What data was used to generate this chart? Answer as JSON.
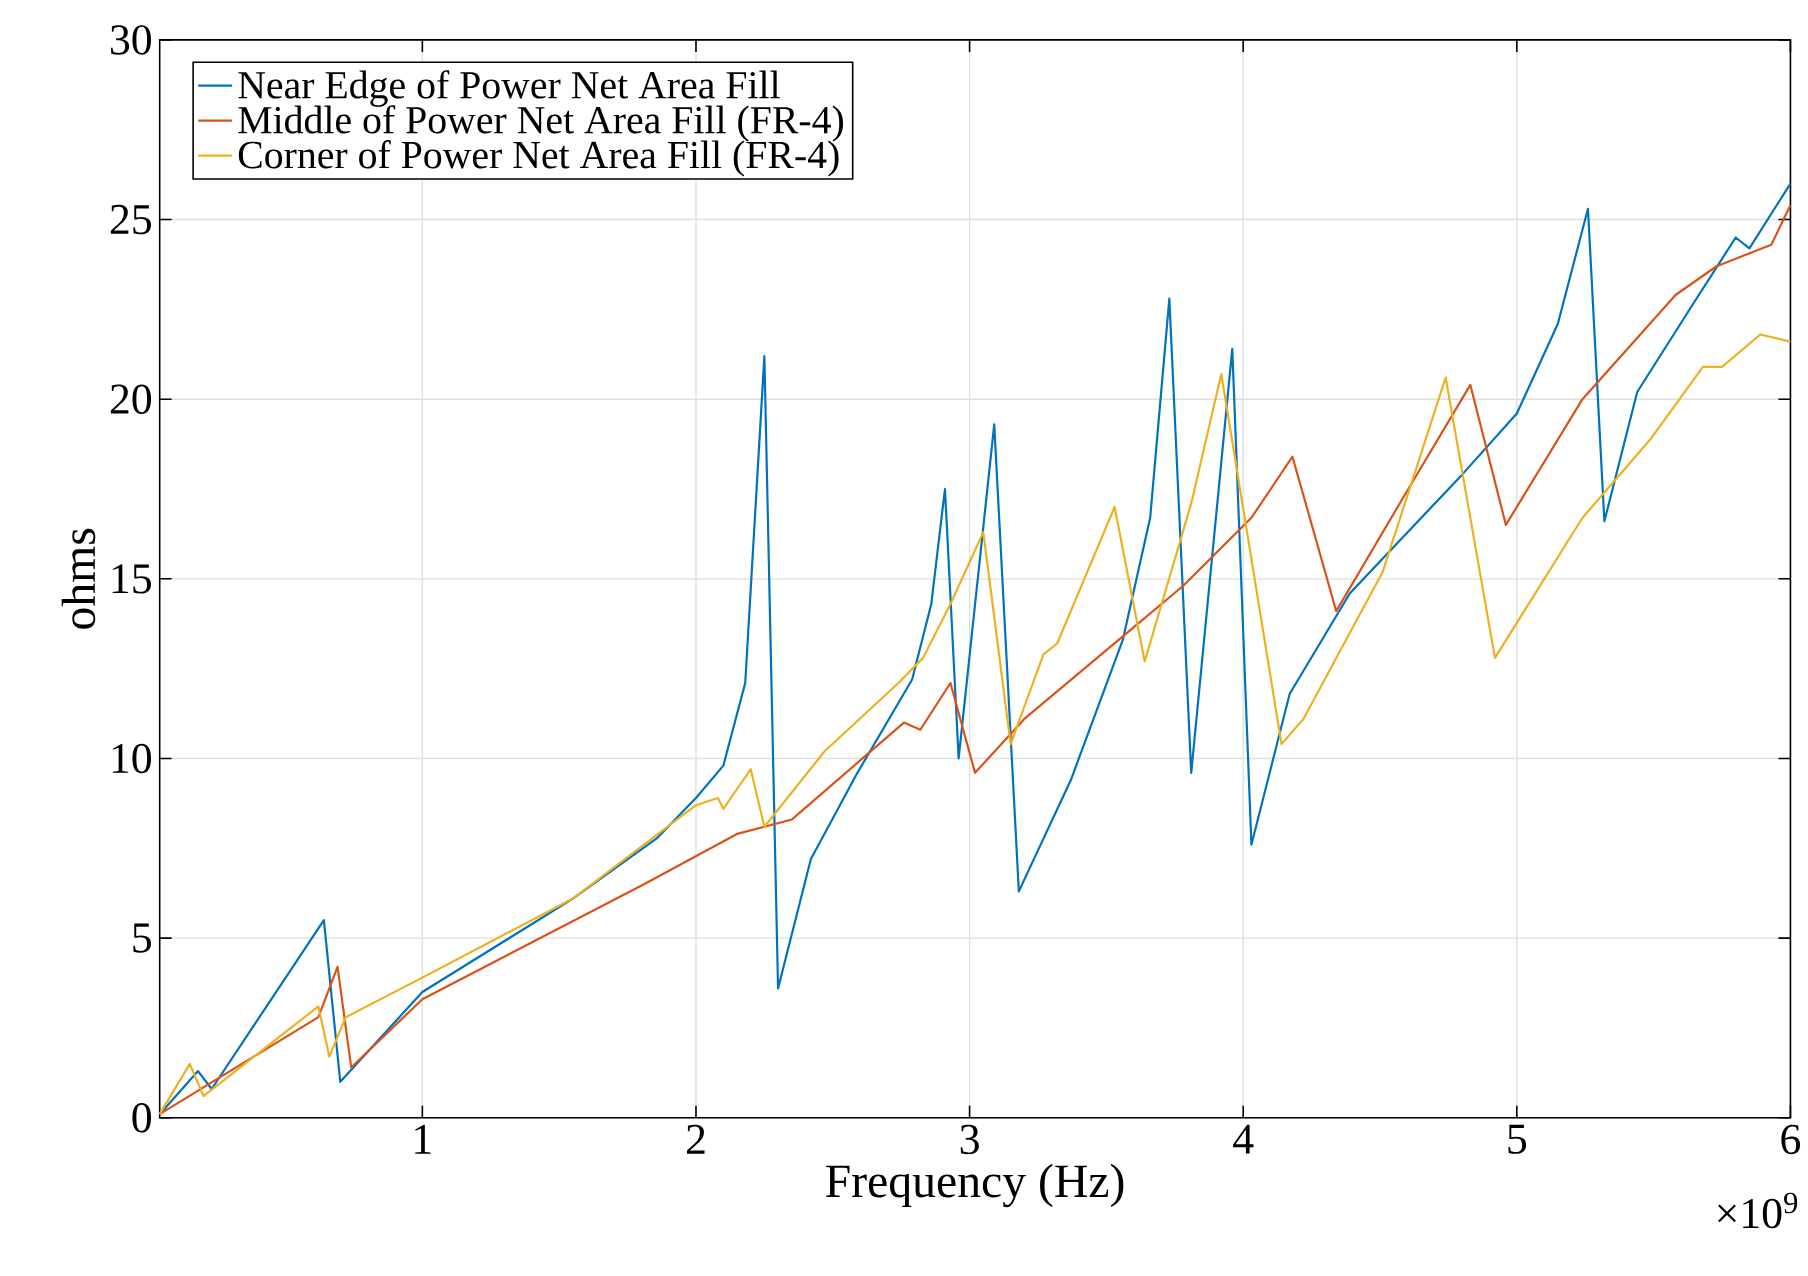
{
  "chart_data": {
    "type": "line",
    "xlabel": "Frequency (Hz)",
    "ylabel": "ohms",
    "annotations": [
      "×10$^{9}$"
    ],
    "xlim": [
      0.04,
      6
    ],
    "ylim": [
      0,
      30
    ],
    "xticks": [
      1,
      2,
      3,
      4,
      5,
      6
    ],
    "yticks": [
      0,
      5,
      10,
      15,
      20,
      25,
      30
    ],
    "grid": true,
    "legend": "top left",
    "marker": "none",
    "line_style": "solid",
    "series": [
      {
        "name": "Near Edge of Power Net Area Fill",
        "color": "#0072bd",
        "x": [
          0.04,
          0.18,
          0.23,
          0.64,
          0.7,
          1.0,
          1.55,
          1.86,
          2.0,
          2.1,
          2.18,
          2.25,
          2.3,
          2.42,
          2.59,
          2.79,
          2.86,
          2.91,
          2.96,
          3.09,
          3.18,
          3.37,
          3.56,
          3.66,
          3.73,
          3.81,
          3.96,
          4.03,
          4.17,
          4.39,
          4.8,
          5.0,
          5.15,
          5.26,
          5.32,
          5.44,
          5.64,
          5.8,
          5.85,
          6.0
        ],
        "values": [
          0.1,
          1.3,
          0.8,
          5.5,
          1.0,
          3.5,
          6.1,
          7.8,
          8.9,
          9.8,
          12.1,
          21.2,
          3.6,
          7.2,
          9.6,
          12.2,
          14.3,
          17.5,
          10.0,
          19.3,
          6.3,
          9.4,
          13.3,
          16.7,
          22.8,
          9.6,
          21.4,
          7.6,
          11.8,
          14.6,
          17.9,
          19.6,
          22.1,
          25.3,
          16.6,
          20.2,
          22.6,
          24.5,
          24.2,
          26.0
        ]
      },
      {
        "name": "Middle of Power Net Area Fill (FR-4)",
        "color": "#d95319",
        "x": [
          0.04,
          0.62,
          0.69,
          0.74,
          1.0,
          1.81,
          2.15,
          2.35,
          2.76,
          2.82,
          2.93,
          3.02,
          3.2,
          3.56,
          3.78,
          4.03,
          4.18,
          4.34,
          4.58,
          4.83,
          4.96,
          5.24,
          5.58,
          5.73,
          5.93,
          6.0
        ],
        "values": [
          0.1,
          2.8,
          4.2,
          1.4,
          3.3,
          6.5,
          7.9,
          8.3,
          11.0,
          10.8,
          12.1,
          9.6,
          11.1,
          13.4,
          14.8,
          16.7,
          18.4,
          14.1,
          17.2,
          20.4,
          16.5,
          20.0,
          22.9,
          23.7,
          24.3,
          25.4
        ]
      },
      {
        "name": "Corner of Power Net Area Fill (FR-4)",
        "color": "#edb120",
        "x": [
          0.04,
          0.15,
          0.2,
          0.62,
          0.66,
          0.72,
          1.0,
          1.55,
          2.0,
          2.08,
          2.1,
          2.2,
          2.25,
          2.47,
          2.74,
          2.83,
          2.93,
          3.05,
          3.15,
          3.27,
          3.32,
          3.53,
          3.64,
          3.81,
          3.92,
          4.14,
          4.22,
          4.51,
          4.74,
          4.92,
          5.24,
          5.49,
          5.68,
          5.75,
          5.89,
          6.0
        ],
        "values": [
          0.1,
          1.5,
          0.6,
          3.1,
          1.7,
          2.8,
          3.9,
          6.1,
          8.7,
          8.9,
          8.6,
          9.7,
          8.1,
          10.2,
          12.1,
          12.8,
          14.3,
          16.3,
          10.4,
          12.9,
          13.2,
          17.0,
          12.7,
          17.1,
          20.7,
          10.4,
          11.1,
          15.2,
          20.6,
          12.8,
          16.7,
          18.9,
          20.9,
          20.9,
          21.8,
          21.6
        ]
      }
    ]
  }
}
